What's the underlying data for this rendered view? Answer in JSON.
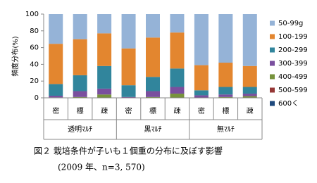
{
  "chart_data": {
    "type": "stacked_bar",
    "ylabel": "頻度分布(%)",
    "categories": [
      "密",
      "標",
      "疎",
      "密",
      "標",
      "疎",
      "密",
      "標",
      "疎"
    ],
    "groups": [
      "透明ﾏﾙﾁ",
      "黒ﾏﾙﾁ",
      "無ﾏﾙﾁ"
    ],
    "series": [
      {
        "name": "50-99g",
        "color": "#95b3d7",
        "values": [
          35.5,
          30,
          23,
          41,
          28,
          22,
          61,
          58,
          62
        ]
      },
      {
        "name": "100-199",
        "color": "#e3862f",
        "values": [
          48,
          43,
          39,
          44,
          47,
          43,
          30,
          29,
          25
        ]
      },
      {
        "name": "200-299",
        "color": "#31859c",
        "values": [
          14,
          19,
          27,
          14,
          17,
          22,
          6,
          9,
          8
        ]
      },
      {
        "name": "300-399",
        "color": "#7a4f9e",
        "values": [
          2,
          7,
          7,
          1,
          7,
          8,
          3,
          3,
          3
        ]
      },
      {
        "name": "400-499",
        "color": "#77933c",
        "values": [
          0.5,
          1,
          4,
          0,
          1,
          5,
          0,
          1,
          2
        ]
      },
      {
        "name": "500-599",
        "color": "#953735",
        "values": [
          0,
          0,
          0,
          0,
          0,
          0,
          0,
          0,
          0
        ]
      },
      {
        "name": "600く",
        "color": "#1f497d",
        "values": [
          0,
          0,
          0,
          0,
          0,
          0,
          0,
          0,
          0
        ]
      }
    ],
    "ylim": [
      0,
      100
    ],
    "yticks": [
      0,
      20,
      40,
      60,
      80,
      100
    ],
    "grid": false,
    "legend": "right",
    "title": "図２ 栽培条件が子いも１個重の分布に及ぼす影響",
    "subtitle": "(2009 年、n=3, 570)"
  }
}
